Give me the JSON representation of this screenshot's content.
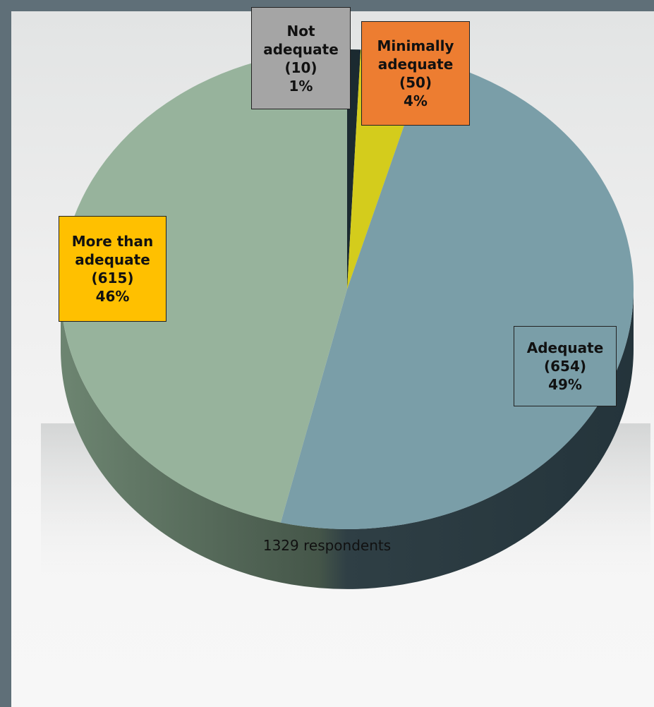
{
  "chart_data": {
    "type": "pie",
    "title": "",
    "slices": [
      {
        "label": "Not adequate",
        "count": "(10)",
        "percent": "1%",
        "value": 10,
        "color": "#1b2a30",
        "box_color": "#a5a5a5"
      },
      {
        "label": "Minimally adequate",
        "count": "(50)",
        "percent": "4%",
        "value": 50,
        "color": "#d4cc1c",
        "box_color": "#ed7d31"
      },
      {
        "label": "Adequate",
        "count": "(654)",
        "percent": "49%",
        "value": 654,
        "color": "#7a9ea8",
        "box_color": "#7a9ea8"
      },
      {
        "label": "More than adequate",
        "count": "(615)",
        "percent": "46%",
        "value": 615,
        "color": "#97b39c",
        "box_color": "#ffc000"
      }
    ],
    "footnote": "1329 respondents"
  }
}
